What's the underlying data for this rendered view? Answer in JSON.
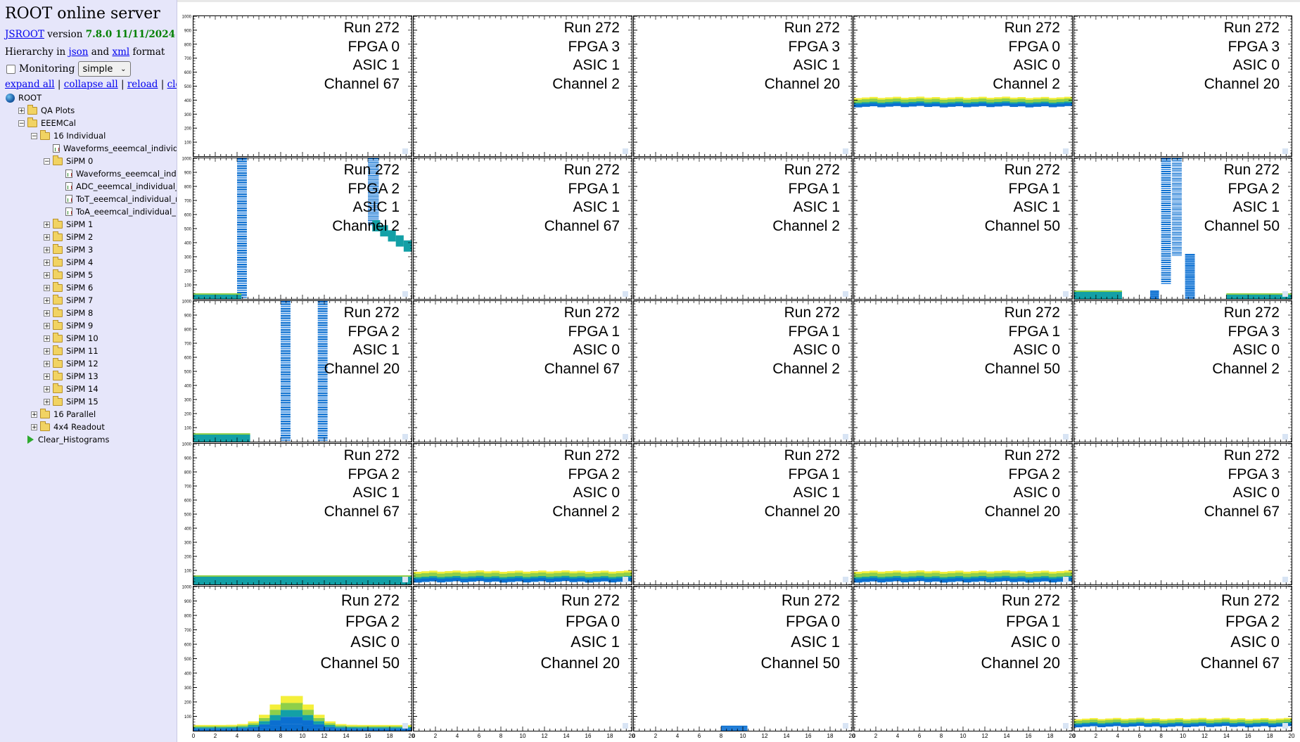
{
  "sidebar": {
    "title": "ROOT online server",
    "jsroot_link": "JSROOT",
    "version_word": "version",
    "version": "7.8.0 11/11/2024",
    "hierarchy_prefix": "Hierarchy in",
    "json_link": "json",
    "and_word": "and",
    "xml_link": "xml",
    "format_word": "format",
    "monitoring_label": "Monitoring",
    "monitoring_select": "simple",
    "actions": {
      "expand_all": "expand all",
      "collapse_all": "collapse all",
      "reload": "reload",
      "clear": "clear",
      "sep": "|"
    },
    "tree": [
      {
        "label": "ROOT",
        "icon": "globe-icon",
        "level": 0,
        "toggle": ""
      },
      {
        "label": "QA Plots",
        "icon": "folder-icon",
        "level": 1,
        "toggle": "+"
      },
      {
        "label": "EEEMCal",
        "icon": "folder-open-icon",
        "level": 1,
        "toggle": "-"
      },
      {
        "label": "16 Individual",
        "icon": "folder-open-icon",
        "level": 2,
        "toggle": "-"
      },
      {
        "label": "Waveforms_eeemcal_individual_",
        "icon": "histogram-icon",
        "level": 3,
        "toggle": ""
      },
      {
        "label": "SiPM 0",
        "icon": "folder-open-icon",
        "level": 3,
        "toggle": "-"
      },
      {
        "label": "Waveforms_eeemcal_individu",
        "icon": "histogram-icon",
        "level": 4,
        "toggle": ""
      },
      {
        "label": "ADC_eeemcal_individual_rea",
        "icon": "histogram-icon",
        "level": 4,
        "toggle": ""
      },
      {
        "label": "ToT_eeemcal_individual_rea",
        "icon": "histogram-icon",
        "level": 4,
        "toggle": ""
      },
      {
        "label": "ToA_eeemcal_individual_rea",
        "icon": "histogram-icon",
        "level": 4,
        "toggle": ""
      },
      {
        "label": "SiPM 1",
        "icon": "folder-icon",
        "level": 3,
        "toggle": "+"
      },
      {
        "label": "SiPM 2",
        "icon": "folder-icon",
        "level": 3,
        "toggle": "+"
      },
      {
        "label": "SiPM 3",
        "icon": "folder-icon",
        "level": 3,
        "toggle": "+"
      },
      {
        "label": "SiPM 4",
        "icon": "folder-icon",
        "level": 3,
        "toggle": "+"
      },
      {
        "label": "SiPM 5",
        "icon": "folder-icon",
        "level": 3,
        "toggle": "+"
      },
      {
        "label": "SiPM 6",
        "icon": "folder-icon",
        "level": 3,
        "toggle": "+"
      },
      {
        "label": "SiPM 7",
        "icon": "folder-icon",
        "level": 3,
        "toggle": "+"
      },
      {
        "label": "SiPM 8",
        "icon": "folder-icon",
        "level": 3,
        "toggle": "+"
      },
      {
        "label": "SiPM 9",
        "icon": "folder-icon",
        "level": 3,
        "toggle": "+"
      },
      {
        "label": "SiPM 10",
        "icon": "folder-icon",
        "level": 3,
        "toggle": "+"
      },
      {
        "label": "SiPM 11",
        "icon": "folder-icon",
        "level": 3,
        "toggle": "+"
      },
      {
        "label": "SiPM 12",
        "icon": "folder-icon",
        "level": 3,
        "toggle": "+"
      },
      {
        "label": "SiPM 13",
        "icon": "folder-icon",
        "level": 3,
        "toggle": "+"
      },
      {
        "label": "SiPM 14",
        "icon": "folder-icon",
        "level": 3,
        "toggle": "+"
      },
      {
        "label": "SiPM 15",
        "icon": "folder-icon",
        "level": 3,
        "toggle": "+"
      },
      {
        "label": "16 Parallel",
        "icon": "folder-icon",
        "level": 2,
        "toggle": "+"
      },
      {
        "label": "4x4 Readout",
        "icon": "folder-icon",
        "level": 2,
        "toggle": "+"
      },
      {
        "label": "Clear_Histograms",
        "icon": "play-icon",
        "level": 1,
        "toggle": ""
      }
    ]
  },
  "axes": {
    "y_ticks": [
      "100",
      "200",
      "300",
      "400",
      "500",
      "600",
      "700",
      "800",
      "900",
      "1000"
    ],
    "x_ticks": [
      "0",
      "2",
      "4",
      "6",
      "8",
      "10",
      "12",
      "14",
      "16",
      "18",
      "20"
    ],
    "y_range": [
      0,
      1000
    ],
    "x_range": [
      0,
      20
    ]
  },
  "colors": {
    "low": "#0b6fd0",
    "mid": "#13a0a6",
    "high": "#8ecf4a",
    "top": "#f4ef3a"
  },
  "pads": [
    {
      "lines": [
        "Run 272",
        "FPGA 0",
        "ASIC 1",
        "Channel 67"
      ]
    },
    {
      "lines": [
        "Run 272",
        "FPGA 3",
        "ASIC 1",
        "Channel 2"
      ]
    },
    {
      "lines": [
        "Run 272",
        "FPGA 3",
        "ASIC 1",
        "Channel 20"
      ]
    },
    {
      "lines": [
        "Run 272",
        "FPGA 0",
        "ASIC 0",
        "Channel 2"
      ]
    },
    {
      "lines": [
        "Run 272",
        "FPGA 3",
        "ASIC 0",
        "Channel 20"
      ]
    },
    {
      "lines": [
        "Run 272",
        "FPGA 2",
        "ASIC 1",
        "Channel 2"
      ]
    },
    {
      "lines": [
        "Run 272",
        "FPGA 1",
        "ASIC 1",
        "Channel 67"
      ]
    },
    {
      "lines": [
        "Run 272",
        "FPGA 1",
        "ASIC 1",
        "Channel 2"
      ]
    },
    {
      "lines": [
        "Run 272",
        "FPGA 1",
        "ASIC 1",
        "Channel 50"
      ]
    },
    {
      "lines": [
        "Run 272",
        "FPGA 2",
        "ASIC 1",
        "Channel 50"
      ]
    },
    {
      "lines": [
        "Run 272",
        "FPGA 2",
        "ASIC 1",
        "Channel 20"
      ]
    },
    {
      "lines": [
        "Run 272",
        "FPGA 1",
        "ASIC 0",
        "Channel 67"
      ]
    },
    {
      "lines": [
        "Run 272",
        "FPGA 1",
        "ASIC 0",
        "Channel 2"
      ]
    },
    {
      "lines": [
        "Run 272",
        "FPGA 1",
        "ASIC 0",
        "Channel 50"
      ]
    },
    {
      "lines": [
        "Run 272",
        "FPGA 3",
        "ASIC 0",
        "Channel 2"
      ]
    },
    {
      "lines": [
        "Run 272",
        "FPGA 2",
        "ASIC 1",
        "Channel 67"
      ]
    },
    {
      "lines": [
        "Run 272",
        "FPGA 2",
        "ASIC 0",
        "Channel 2"
      ]
    },
    {
      "lines": [
        "Run 272",
        "FPGA 1",
        "ASIC 1",
        "Channel 20"
      ]
    },
    {
      "lines": [
        "Run 272",
        "FPGA 2",
        "ASIC 0",
        "Channel 20"
      ]
    },
    {
      "lines": [
        "Run 272",
        "FPGA 3",
        "ASIC 0",
        "Channel 67"
      ]
    },
    {
      "lines": [
        "Run 272",
        "FPGA 2",
        "ASIC 0",
        "Channel 50"
      ]
    },
    {
      "lines": [
        "Run 272",
        "FPGA 0",
        "ASIC 1",
        "Channel 20"
      ]
    },
    {
      "lines": [
        "Run 272",
        "FPGA 0",
        "ASIC 1",
        "Channel 50"
      ]
    },
    {
      "lines": [
        "Run 272",
        "FPGA 1",
        "ASIC 0",
        "Channel 20"
      ]
    },
    {
      "lines": [
        "Run 272",
        "FPGA 2",
        "ASIC 0",
        "Channel 67"
      ]
    }
  ]
}
